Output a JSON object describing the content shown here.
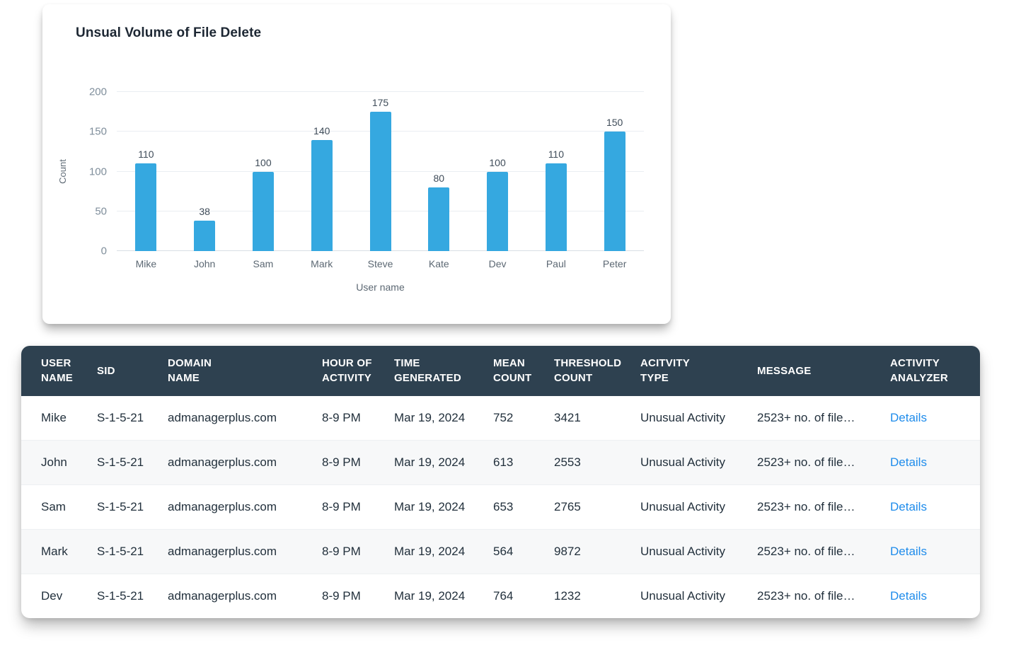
{
  "colors": {
    "bar": "#35a8e0",
    "table_header_bg": "#2e4150",
    "link": "#1f8ceb"
  },
  "chart_data": {
    "type": "bar",
    "title": "Unsual Volume of File Delete",
    "categories": [
      "Mike",
      "John",
      "Sam",
      "Mark",
      "Steve",
      "Kate",
      "Dev",
      "Paul",
      "Peter"
    ],
    "values": [
      110,
      38,
      100,
      140,
      175,
      80,
      100,
      110,
      150
    ],
    "xlabel": "User name",
    "ylabel": "Count",
    "ylim": [
      0,
      200
    ],
    "yticks": [
      0,
      50,
      100,
      150,
      200
    ],
    "grid": true,
    "legend": false
  },
  "table": {
    "columns": [
      {
        "key": "user_name",
        "label": "USER\nNAME"
      },
      {
        "key": "sid",
        "label": "SID"
      },
      {
        "key": "domain_name",
        "label": "DOMAIN\nNAME"
      },
      {
        "key": "hour_of_activity",
        "label": "HOUR OF\nACTIVITY"
      },
      {
        "key": "time_generated",
        "label": "TIME\nGENERATED"
      },
      {
        "key": "mean_count",
        "label": "MEAN\nCOUNT"
      },
      {
        "key": "threshold_count",
        "label": "THRESHOLD\nCOUNT"
      },
      {
        "key": "activity_type",
        "label": "ACITVITY\nTYPE"
      },
      {
        "key": "message",
        "label": "MESSAGE"
      },
      {
        "key": "activity_analyzer",
        "label": "ACTIVITY\nANALYZER"
      }
    ],
    "rows": [
      {
        "user_name": "Mike",
        "sid": "S-1-5-21",
        "domain_name": "admanagerplus.com",
        "hour_of_activity": "8-9 PM",
        "time_generated": "Mar 19, 2024",
        "mean_count": "752",
        "threshold_count": "3421",
        "activity_type": "Unusual Activity",
        "message": "2523+ no. of file…",
        "activity_analyzer": "Details"
      },
      {
        "user_name": "John",
        "sid": "S-1-5-21",
        "domain_name": "admanagerplus.com",
        "hour_of_activity": "8-9 PM",
        "time_generated": "Mar 19, 2024",
        "mean_count": "613",
        "threshold_count": "2553",
        "activity_type": "Unusual Activity",
        "message": "2523+ no. of file…",
        "activity_analyzer": "Details"
      },
      {
        "user_name": "Sam",
        "sid": "S-1-5-21",
        "domain_name": "admanagerplus.com",
        "hour_of_activity": "8-9 PM",
        "time_generated": "Mar 19, 2024",
        "mean_count": "653",
        "threshold_count": "2765",
        "activity_type": "Unusual Activity",
        "message": "2523+ no. of file…",
        "activity_analyzer": "Details"
      },
      {
        "user_name": "Mark",
        "sid": "S-1-5-21",
        "domain_name": "admanagerplus.com",
        "hour_of_activity": "8-9 PM",
        "time_generated": "Mar 19, 2024",
        "mean_count": "564",
        "threshold_count": "9872",
        "activity_type": "Unusual Activity",
        "message": "2523+ no. of file…",
        "activity_analyzer": "Details"
      },
      {
        "user_name": "Dev",
        "sid": "S-1-5-21",
        "domain_name": "admanagerplus.com",
        "hour_of_activity": "8-9 PM",
        "time_generated": "Mar 19, 2024",
        "mean_count": "764",
        "threshold_count": "1232",
        "activity_type": "Unusual Activity",
        "message": "2523+ no. of file…",
        "activity_analyzer": "Details"
      }
    ]
  }
}
